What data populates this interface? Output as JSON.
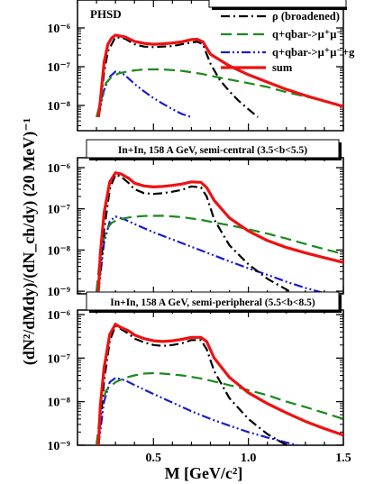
{
  "figure": {
    "y_axis_label": "(dN²/dMdy)/(dN_ch/dy)  (20 MeV)⁻¹",
    "x_axis_label": "M  [GeV/c²]"
  },
  "legend": [
    {
      "label": "ρ (broadened)",
      "color": "#000000",
      "dash": "dashdot"
    },
    {
      "label": "q+qbar->μ⁺μ⁻",
      "color": "#1a8a1a",
      "dash": "dash"
    },
    {
      "label": "q+qbar->μ⁺μ⁻+g",
      "color": "#1a1ad4",
      "dash": "dashdotdot"
    },
    {
      "label": "sum",
      "color": "#ee1111",
      "dash": "solid"
    }
  ],
  "chart_data": [
    {
      "type": "line",
      "label": "PHSD",
      "title": "",
      "xlim": [
        0.1,
        1.5
      ],
      "ylim": [
        5e-09,
        2e-06
      ],
      "yscale": "log",
      "yticks": [
        "10⁻⁶",
        "10⁻⁷",
        "10⁻⁸"
      ],
      "xticks": [],
      "series": [
        {
          "name": "ρ (broadened)",
          "x": [
            0.21,
            0.22,
            0.24,
            0.26,
            0.3,
            0.35,
            0.4,
            0.45,
            0.5,
            0.55,
            0.6,
            0.65,
            0.7,
            0.73,
            0.76,
            0.8,
            0.85,
            0.9,
            0.95,
            1.0,
            1.05
          ],
          "y": [
            5e-09,
            1e-08,
            7e-08,
            2.5e-07,
            5.8e-07,
            5.3e-07,
            3.8e-07,
            3.3e-07,
            3.2e-07,
            3.3e-07,
            3.4e-07,
            3.8e-07,
            4.2e-07,
            4.4e-07,
            3.8e-07,
            1.2e-07,
            4.5e-08,
            2.3e-08,
            1.3e-08,
            8e-09,
            5e-09
          ]
        },
        {
          "name": "q+qbar->μ⁺μ⁻",
          "x": [
            0.2,
            0.22,
            0.25,
            0.28,
            0.32,
            0.38,
            0.45,
            0.55,
            0.65,
            0.75,
            0.85,
            0.95,
            1.1,
            1.2,
            1.3,
            1.4,
            1.5
          ],
          "y": [
            5e-09,
            1.2e-08,
            3.8e-08,
            5.5e-08,
            6.8e-08,
            7.8e-08,
            8.5e-08,
            8.5e-08,
            7.8e-08,
            6.6e-08,
            5.2e-08,
            4.2e-08,
            3e-08,
            2.2e-08,
            1.7e-08,
            1.3e-08,
            9.5e-09
          ]
        },
        {
          "name": "q+qbar->μ⁺μ⁻+g",
          "x": [
            0.21,
            0.24,
            0.27,
            0.3,
            0.33,
            0.35,
            0.4,
            0.45,
            0.5,
            0.55,
            0.6,
            0.65,
            0.7
          ],
          "y": [
            5e-09,
            2.5e-08,
            5.5e-08,
            7.5e-08,
            7e-08,
            6e-08,
            3.6e-08,
            2.3e-08,
            1.55e-08,
            1.1e-08,
            8e-09,
            6e-09,
            5e-09
          ]
        },
        {
          "name": "sum",
          "x": [
            0.21,
            0.22,
            0.24,
            0.26,
            0.28,
            0.3,
            0.35,
            0.4,
            0.45,
            0.5,
            0.55,
            0.6,
            0.65,
            0.7,
            0.73,
            0.76,
            0.8,
            0.9,
            1.0,
            1.1,
            1.2,
            1.3,
            1.4,
            1.5
          ],
          "y": [
            5e-09,
            1.3e-08,
            1.3e-07,
            3.8e-07,
            5.5e-07,
            6.5e-07,
            5.9e-07,
            4.5e-07,
            4e-07,
            3.8e-07,
            3.9e-07,
            4.1e-07,
            4.4e-07,
            5e-07,
            5.1e-07,
            4.4e-07,
            2.1e-07,
            1.05e-07,
            6.2e-08,
            4e-08,
            2.6e-08,
            1.8e-08,
            1.3e-08,
            9.5e-09
          ]
        }
      ]
    },
    {
      "type": "line",
      "label": "In+In, 158 A GeV, semi-central (3.5<b<5.5)",
      "title": "In+In, 158 A GeV, semi-central (3.5<b<5.5)",
      "xlim": [
        0.1,
        1.5
      ],
      "ylim": [
        8e-10,
        1.3e-06
      ],
      "yscale": "log",
      "yticks": [
        "10⁻⁶",
        "10⁻⁷",
        "10⁻⁸",
        "10⁻⁹"
      ],
      "xticks": [],
      "series": [
        {
          "name": "ρ (broadened)",
          "x": [
            0.21,
            0.22,
            0.24,
            0.27,
            0.3,
            0.33,
            0.37,
            0.4,
            0.45,
            0.5,
            0.55,
            0.6,
            0.65,
            0.7,
            0.75,
            0.78,
            0.82,
            0.9,
            1.0,
            1.1,
            1.2,
            1.25
          ],
          "y": [
            1e-09,
            3e-09,
            3e-08,
            3e-07,
            6.8e-07,
            6e-07,
            4.2e-07,
            3e-07,
            2.4e-07,
            2.3e-07,
            2.4e-07,
            2.6e-07,
            2.9e-07,
            3.5e-07,
            3.3e-07,
            2e-07,
            5.5e-08,
            1.3e-08,
            4.5e-09,
            2e-09,
            1.1e-09,
            8e-10
          ]
        },
        {
          "name": "q+qbar->μ⁺μ⁻",
          "x": [
            0.2,
            0.22,
            0.25,
            0.28,
            0.32,
            0.38,
            0.45,
            0.55,
            0.65,
            0.75,
            0.85,
            0.95,
            1.1,
            1.2,
            1.3,
            1.4,
            1.5
          ],
          "y": [
            1e-09,
            8e-09,
            3e-08,
            4.6e-08,
            5.6e-08,
            6.3e-08,
            6.7e-08,
            6.8e-08,
            6.3e-08,
            5.4e-08,
            4.4e-08,
            3.6e-08,
            2.5e-08,
            1.9e-08,
            1.4e-08,
            1.05e-08,
            8e-09
          ]
        },
        {
          "name": "q+qbar->μ⁺μ⁻+g",
          "x": [
            0.21,
            0.24,
            0.27,
            0.3,
            0.35,
            0.4,
            0.5,
            0.6,
            0.7,
            0.8,
            0.9,
            1.0,
            1.1,
            1.2,
            1.3,
            1.4,
            1.5
          ],
          "y": [
            1e-09,
            1.5e-08,
            5e-08,
            6.5e-08,
            5.5e-08,
            4.3e-08,
            2.7e-08,
            1.8e-08,
            1.2e-08,
            8e-09,
            5.3e-09,
            3.6e-09,
            2.5e-09,
            1.7e-09,
            1.2e-09,
            9e-10,
            8e-10
          ]
        },
        {
          "name": "sum",
          "x": [
            0.21,
            0.22,
            0.24,
            0.27,
            0.3,
            0.33,
            0.37,
            0.4,
            0.45,
            0.5,
            0.55,
            0.6,
            0.65,
            0.7,
            0.75,
            0.78,
            0.82,
            0.9,
            1.0,
            1.1,
            1.2,
            1.3,
            1.4,
            1.5
          ],
          "y": [
            1e-09,
            8e-09,
            8e-08,
            4.5e-07,
            7.5e-07,
            7e-07,
            5.5e-07,
            4.2e-07,
            3.6e-07,
            3.4e-07,
            3.5e-07,
            3.7e-07,
            4e-07,
            4.5e-07,
            4.4e-07,
            3.3e-07,
            1.6e-07,
            6e-08,
            2.9e-08,
            1.7e-08,
            1.15e-08,
            8.5e-09,
            6.5e-09,
            5e-09
          ]
        }
      ]
    },
    {
      "type": "line",
      "label": "In+In, 158 A GeV, semi-peripheral (5.5<b<8.5)",
      "title": "In+In, 158 A GeV, semi-peripheral (5.5<b<8.5)",
      "xlim": [
        0.1,
        1.5
      ],
      "ylim": [
        8e-10,
        1.3e-06
      ],
      "yscale": "log",
      "yticks": [
        "10⁻⁶",
        "10⁻⁷",
        "10⁻⁸",
        "10⁻⁹"
      ],
      "xticks": [
        "0.5",
        "1.0",
        "1.5"
      ],
      "series": [
        {
          "name": "ρ (broadened)",
          "x": [
            0.21,
            0.22,
            0.24,
            0.27,
            0.3,
            0.33,
            0.37,
            0.4,
            0.45,
            0.5,
            0.55,
            0.6,
            0.65,
            0.7,
            0.75,
            0.78,
            0.82,
            0.9,
            1.0,
            1.1,
            1.2,
            1.25
          ],
          "y": [
            1e-09,
            3e-09,
            3e-08,
            2.5e-07,
            5.5e-07,
            4.6e-07,
            3.6e-07,
            2.8e-07,
            2.3e-07,
            2e-07,
            1.9e-07,
            2e-07,
            2.2e-07,
            2.6e-07,
            2.6e-07,
            1.6e-07,
            5e-08,
            1.2e-08,
            4e-09,
            1.8e-09,
            1e-09,
            8e-10
          ]
        },
        {
          "name": "q+qbar->μ⁺μ⁻",
          "x": [
            0.2,
            0.22,
            0.25,
            0.3,
            0.35,
            0.4,
            0.45,
            0.5,
            0.55,
            0.65,
            0.75,
            0.85,
            0.95,
            1.1,
            1.2,
            1.3,
            1.4,
            1.5
          ],
          "y": [
            1e-09,
            6e-09,
            1.8e-08,
            2.8e-08,
            3.5e-08,
            4e-08,
            4.4e-08,
            4.5e-08,
            4.4e-08,
            4e-08,
            3.4e-08,
            2.7e-08,
            2.1e-08,
            1.4e-08,
            1e-08,
            7.5e-09,
            5.5e-09,
            4e-09
          ]
        },
        {
          "name": "q+qbar->μ⁺μ⁻+g",
          "x": [
            0.21,
            0.24,
            0.27,
            0.3,
            0.35,
            0.4,
            0.5,
            0.6,
            0.7,
            0.8,
            0.9,
            1.0,
            1.1,
            1.2,
            1.3,
            1.4,
            1.5
          ],
          "y": [
            1e-09,
            1e-08,
            2.8e-08,
            3.5e-08,
            3.1e-08,
            2.4e-08,
            1.5e-08,
            9.5e-09,
            6e-09,
            4e-09,
            2.8e-09,
            2e-09,
            1.5e-09,
            1.15e-09,
            9e-10,
            8e-10,
            8e-10
          ]
        },
        {
          "name": "sum",
          "x": [
            0.21,
            0.22,
            0.24,
            0.27,
            0.3,
            0.33,
            0.37,
            0.4,
            0.45,
            0.5,
            0.55,
            0.6,
            0.65,
            0.7,
            0.75,
            0.78,
            0.82,
            0.9,
            1.0,
            1.1,
            1.2,
            1.3,
            1.4,
            1.5
          ],
          "y": [
            1e-09,
            8e-09,
            6e-08,
            3.5e-07,
            6e-07,
            5e-07,
            4.2e-07,
            3.4e-07,
            2.8e-07,
            2.5e-07,
            2.4e-07,
            2.5e-07,
            2.7e-07,
            3e-07,
            3e-07,
            2.4e-07,
            1e-07,
            3.6e-08,
            1.6e-08,
            9e-09,
            5.5e-09,
            3.5e-09,
            2.4e-09,
            1.7e-09
          ]
        }
      ]
    }
  ]
}
